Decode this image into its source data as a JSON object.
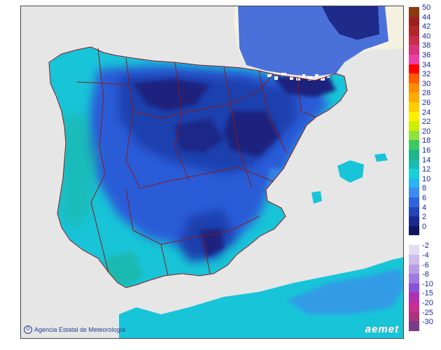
{
  "map": {
    "credit_text": "Agencia Estatal de Meteorología",
    "credit_symbol": "©",
    "logo_text": "aemet",
    "colors": {
      "sea": "#e6e6e6",
      "france": "#f5f1e0",
      "border": "#8b1a1a",
      "deep_blue": "#1a237e",
      "blue": "#2b5bd8",
      "light_blue": "#3b8eea",
      "cyan": "#18c4d8",
      "teal": "#1fb7a6"
    }
  },
  "legend": {
    "positive": [
      {
        "label": "50",
        "color": "#8b3a0e"
      },
      {
        "label": "44",
        "color": "#9c2020"
      },
      {
        "label": "42",
        "color": "#b02828"
      },
      {
        "label": "40",
        "color": "#c72d4a"
      },
      {
        "label": "38",
        "color": "#d8347a"
      },
      {
        "label": "36",
        "color": "#ee3fa6"
      },
      {
        "label": "34",
        "color": "#ff0000"
      },
      {
        "label": "32",
        "color": "#ff5a00"
      },
      {
        "label": "30",
        "color": "#ff8c00"
      },
      {
        "label": "28",
        "color": "#ffaa00"
      },
      {
        "label": "26",
        "color": "#ffcc00"
      },
      {
        "label": "24",
        "color": "#ffee00"
      },
      {
        "label": "22",
        "color": "#ccf000"
      },
      {
        "label": "20",
        "color": "#90e040"
      },
      {
        "label": "18",
        "color": "#40c860"
      },
      {
        "label": "16",
        "color": "#20b48c"
      },
      {
        "label": "14",
        "color": "#1cbcb0"
      },
      {
        "label": "12",
        "color": "#1ad0d8"
      },
      {
        "label": "10",
        "color": "#28b4f0"
      },
      {
        "label": "8",
        "color": "#3c8cf0"
      },
      {
        "label": "6",
        "color": "#2e64dc"
      },
      {
        "label": "4",
        "color": "#2444b8"
      },
      {
        "label": "2",
        "color": "#1a2a8a"
      },
      {
        "label": "0",
        "color": "#0f1660"
      }
    ],
    "negative": [
      {
        "label": "-2",
        "color": "#e4dcf4"
      },
      {
        "label": "-4",
        "color": "#cdbcec"
      },
      {
        "label": "-6",
        "color": "#b69ce4"
      },
      {
        "label": "-8",
        "color": "#a07ae0"
      },
      {
        "label": "-10",
        "color": "#8a50d8"
      },
      {
        "label": "-15",
        "color": "#b030b0"
      },
      {
        "label": "-20",
        "color": "#c83090"
      },
      {
        "label": "-25",
        "color": "#a8347a"
      },
      {
        "label": "-30",
        "color": "#7a3a88"
      }
    ]
  }
}
